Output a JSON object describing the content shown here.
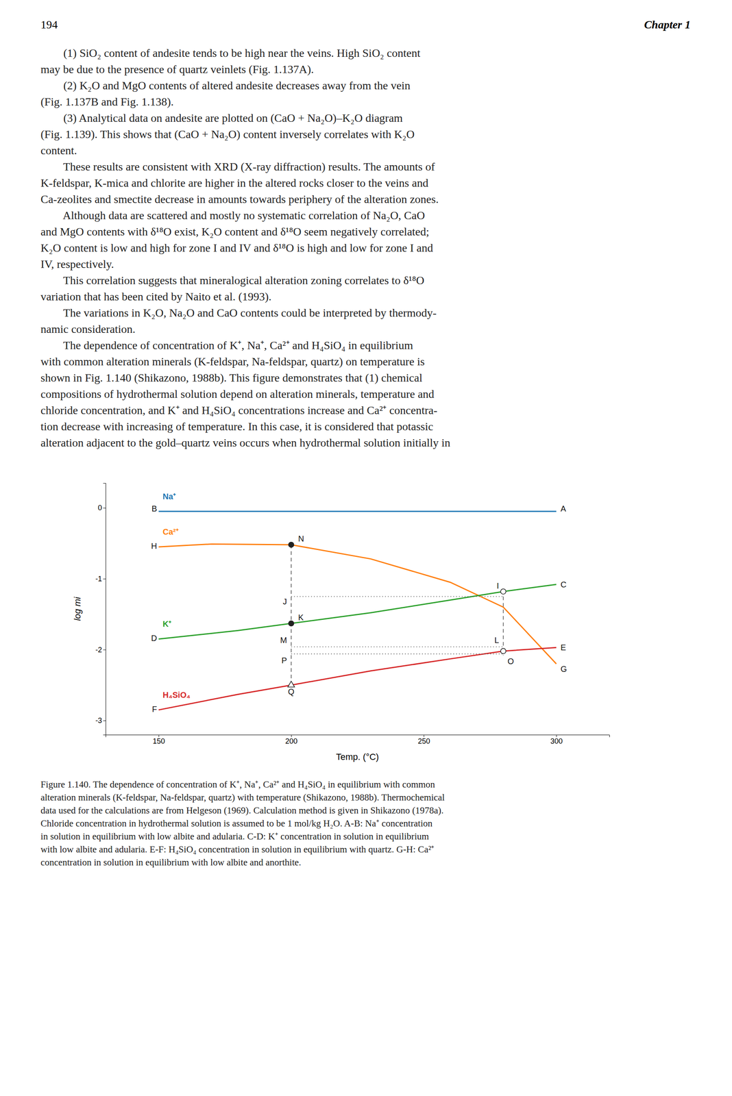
{
  "page_number": "194",
  "chapter": "Chapter 1",
  "body_lines": [
    "        (1) SiO₂ content of andesite tends to be high near the veins. High SiO₂ content",
    "may be due to the presence of quartz veinlets (Fig. 1.137A).",
    "        (2) K₂O and MgO contents of altered andesite decreases away from the vein",
    "(Fig. 1.137B and Fig. 1.138).",
    "        (3) Analytical data on andesite are plotted on (CaO + Na₂O)–K₂O diagram",
    "(Fig. 1.139). This shows that (CaO + Na₂O) content inversely correlates with K₂O",
    "content.",
    "        These results are consistent with XRD (X-ray diffraction) results. The amounts of",
    "K-feldspar, K-mica and chlorite are higher in the altered rocks closer to the veins and",
    "Ca-zeolites and smectite decrease in amounts towards periphery of the alteration zones.",
    "        Although data are scattered and mostly no systematic correlation of Na₂O, CaO",
    "and MgO contents with δ¹⁸O exist, K₂O content and δ¹⁸O seem negatively correlated;",
    "K₂O content is low and high for zone I and IV and δ¹⁸O is high and low for zone I and",
    "IV, respectively.",
    "        This correlation suggests that mineralogical alteration zoning correlates to δ¹⁸O",
    "variation that has been cited by Naito et al. (1993).",
    "        The variations in K₂O, Na₂O and CaO contents could be interpreted by thermody-",
    "namic consideration.",
    "        The dependence of concentration of K⁺, Na⁺, Ca²⁺ and H₄SiO₄ in equilibrium",
    "with common alteration minerals (K-feldspar, Na-feldspar, quartz) on temperature is",
    "shown in Fig. 1.140 (Shikazono, 1988b). This figure demonstrates that (1) chemical",
    "compositions of hydrothermal solution depend on alteration minerals, temperature and",
    "chloride concentration, and K⁺ and H₄SiO₄ concentrations increase and Ca²⁺ concentra-",
    "tion decrease with increasing of temperature. In this case, it is considered that potassic",
    "alteration adjacent to the gold–quartz veins occurs when hydrothermal solution initially in"
  ],
  "chart_data": {
    "type": "line",
    "xlabel": "Temp. (°C)",
    "ylabel": "log mi",
    "xlim": [
      130,
      320
    ],
    "ylim": [
      -3.2,
      0.35
    ],
    "xticks": [
      150,
      200,
      250,
      300
    ],
    "yticks": [
      0,
      -1,
      -2,
      -3
    ],
    "grid": false,
    "series": [
      {
        "name": "Na⁺",
        "x": [
          150,
          300
        ],
        "values": [
          -0.05,
          -0.05
        ]
      },
      {
        "name": "Ca²⁺",
        "x": [
          150,
          170,
          200,
          230,
          260,
          280,
          300
        ],
        "values": [
          -0.55,
          -0.51,
          -0.52,
          -0.72,
          -1.05,
          -1.4,
          -2.2
        ]
      },
      {
        "name": "K⁺",
        "x": [
          150,
          180,
          200,
          230,
          260,
          280,
          300
        ],
        "values": [
          -1.85,
          -1.73,
          -1.63,
          -1.48,
          -1.3,
          -1.18,
          -1.08
        ]
      },
      {
        "name": "H₄SiO₄",
        "x": [
          150,
          180,
          200,
          230,
          260,
          280,
          300
        ],
        "values": [
          -2.85,
          -2.63,
          -2.5,
          -2.3,
          -2.13,
          -2.02,
          -1.97
        ]
      },
      {
        "type": "line",
        "line_style": "dashed",
        "x": [
          200,
          200
        ],
        "values": [
          -0.52,
          -2.5
        ]
      },
      {
        "type": "line",
        "line_style": "dotted",
        "x": [
          200,
          280
        ],
        "values": [
          -1.25,
          -1.25
        ]
      },
      {
        "type": "line",
        "line_style": "dotted",
        "x": [
          200,
          280
        ],
        "values": [
          -1.96,
          -1.96
        ]
      },
      {
        "type": "line",
        "line_style": "dotted",
        "x": [
          200,
          280
        ],
        "values": [
          -2.06,
          -2.06
        ]
      },
      {
        "type": "line",
        "line_style": "dashed",
        "x": [
          280,
          280
        ],
        "values": [
          -1.25,
          -2.08
        ]
      },
      {
        "type": "scatter",
        "marker": "filled-circle",
        "x": [
          200,
          200
        ],
        "values": [
          -0.52,
          -1.63
        ]
      },
      {
        "type": "scatter",
        "marker": "open-circle",
        "x": [
          280,
          280
        ],
        "values": [
          -1.18,
          -2.02
        ]
      },
      {
        "type": "scatter",
        "marker": "open-triangle",
        "x": [
          200
        ],
        "values": [
          -2.5
        ]
      }
    ],
    "annotations": [
      {
        "text": "B",
        "x": 150,
        "y": -0.01
      },
      {
        "text": "A",
        "x": 301,
        "y": -0.01
      },
      {
        "text": "H",
        "x": 150,
        "y": -0.54
      },
      {
        "text": "N",
        "x": 202,
        "y": -0.5
      },
      {
        "text": "G",
        "x": 301,
        "y": -2.2
      },
      {
        "text": "D",
        "x": 150,
        "y": -1.84
      },
      {
        "text": "K",
        "x": 202,
        "y": -1.61
      },
      {
        "text": "J",
        "x": 199,
        "y": -1.25
      },
      {
        "text": "I",
        "x": 279,
        "y": -1.16
      },
      {
        "text": "C",
        "x": 301,
        "y": -1.08
      },
      {
        "text": "F",
        "x": 150,
        "y": -2.84
      },
      {
        "text": "Q",
        "x": 200,
        "y": -2.52
      },
      {
        "text": "E",
        "x": 301,
        "y": -1.97
      },
      {
        "text": "M",
        "x": 199,
        "y": -1.93
      },
      {
        "text": "L",
        "x": 279,
        "y": -1.93
      },
      {
        "text": "P",
        "x": 199,
        "y": -2.08
      },
      {
        "text": "O",
        "x": 281,
        "y": -2.09
      }
    ]
  },
  "caption_lines": [
    "Figure 1.140. The dependence of concentration of K⁺, Na⁺, Ca²⁺ and H₄SiO₄ in equilibrium with common",
    "alteration minerals (K-feldspar, Na-feldspar, quartz) with temperature (Shikazono, 1988b). Thermochemical",
    "data used for the calculations are from Helgeson (1969). Calculation method is given in Shikazono (1978a).",
    "Chloride concentration in hydrothermal solution is assumed to be 1 mol/kg H₂O. A-B: Na⁺ concentration",
    "in solution in equilibrium with low albite and adularia. C-D: K⁺ concentration in solution in equilibrium",
    "with low albite and adularia. E-F: H₄SiO₄ concentration in solution in equilibrium with quartz. G-H: Ca²⁺",
    "concentration in solution in equilibrium with low albite and anorthite."
  ]
}
